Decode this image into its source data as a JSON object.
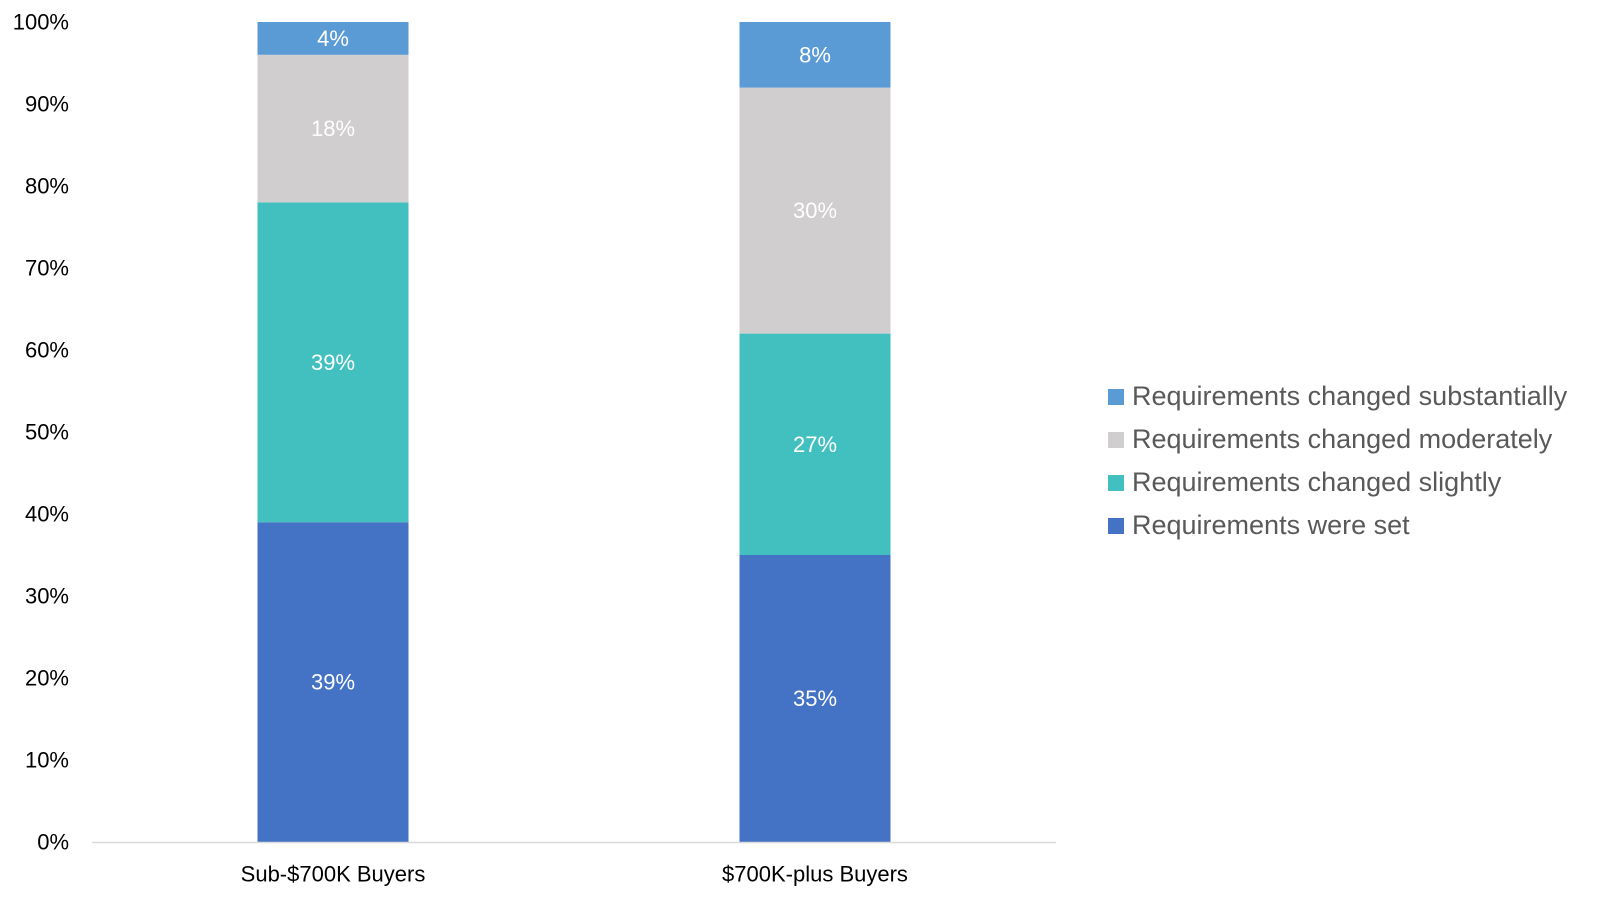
{
  "chart_data": {
    "type": "bar",
    "stacked": true,
    "title": "",
    "xlabel": "",
    "ylabel": "",
    "ylim": [
      0,
      100
    ],
    "y_unit": "%",
    "y_ticks": [
      "0%",
      "10%",
      "20%",
      "30%",
      "40%",
      "50%",
      "60%",
      "70%",
      "80%",
      "90%",
      "100%"
    ],
    "categories": [
      "Sub-$700K Buyers",
      "$700K-plus Buyers"
    ],
    "series": [
      {
        "name": "Requirements were set",
        "color": "#4472C4",
        "values": [
          39,
          35
        ],
        "labels": [
          "39%",
          "35%"
        ]
      },
      {
        "name": "Requirements changed slightly",
        "color": "#42BFBF",
        "values": [
          39,
          27
        ],
        "labels": [
          "39%",
          "27%"
        ]
      },
      {
        "name": "Requirements changed moderately",
        "color": "#D0CECE",
        "values": [
          18,
          30
        ],
        "labels": [
          "18%",
          "30%"
        ]
      },
      {
        "name": "Requirements changed substantially",
        "color": "#5B9BD5",
        "values": [
          4,
          8
        ],
        "labels": [
          "4%",
          "8%"
        ]
      }
    ],
    "legend_position": "right",
    "legend_order": [
      3,
      2,
      1,
      0
    ],
    "grid": false
  }
}
